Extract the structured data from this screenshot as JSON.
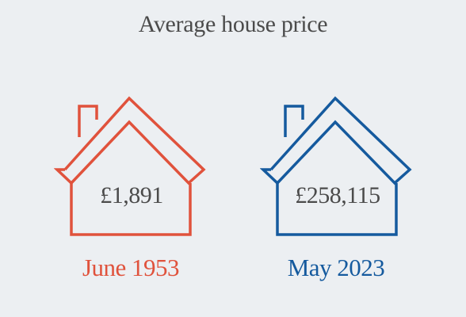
{
  "title": "Average house price",
  "items": [
    {
      "price": "£1,891",
      "date": "June 1953",
      "color": "#e0523c",
      "icon": "house-icon"
    },
    {
      "price": "£258,115",
      "date": "May 2023",
      "color": "#155a9e",
      "icon": "house-icon"
    }
  ]
}
